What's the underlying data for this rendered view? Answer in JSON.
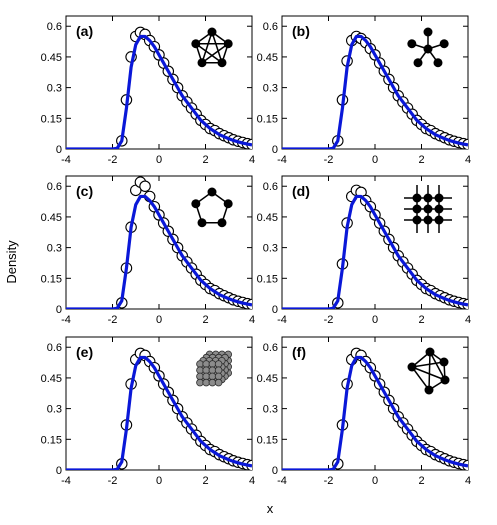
{
  "figure": {
    "ylabel": "Density",
    "xlabel": "x"
  },
  "colors": {
    "curve": "#0a18d8",
    "markers": "#000000",
    "frame": "#000000"
  },
  "chart_data": [
    {
      "type": "line",
      "panel_label": "(a)",
      "inset_icon": "complete-graph-icon",
      "xlim": [
        -4,
        4
      ],
      "ylim": [
        0,
        0.65
      ],
      "xticks": [
        "-4",
        "-2",
        "0",
        "2",
        "4"
      ],
      "yticks": [
        "0",
        "0.15",
        "0.3",
        "0.45",
        "0.6"
      ],
      "series": [
        {
          "kind": "markers",
          "x": [
            -1.6,
            -1.4,
            -1.2,
            -1.0,
            -0.8,
            -0.6,
            -0.4,
            -0.2,
            0.0,
            0.2,
            0.4,
            0.6,
            0.8,
            1.0,
            1.2,
            1.4,
            1.6,
            1.8,
            2.0,
            2.2,
            2.4,
            2.6,
            2.8,
            3.0,
            3.2,
            3.4,
            3.6,
            3.8,
            4.0
          ],
          "y": [
            0.04,
            0.24,
            0.45,
            0.55,
            0.57,
            0.56,
            0.53,
            0.5,
            0.46,
            0.42,
            0.38,
            0.34,
            0.3,
            0.26,
            0.23,
            0.2,
            0.17,
            0.14,
            0.12,
            0.1,
            0.09,
            0.075,
            0.065,
            0.055,
            0.045,
            0.038,
            0.032,
            0.026,
            0.022
          ]
        },
        {
          "kind": "line",
          "x": [
            -4,
            -2,
            -1.8,
            -1.6,
            -1.4,
            -1.2,
            -1.0,
            -0.8,
            -0.6,
            -0.4,
            -0.2,
            0.0,
            0.2,
            0.4,
            0.6,
            0.8,
            1.0,
            1.2,
            1.4,
            1.6,
            1.8,
            2.0,
            2.2,
            2.4,
            2.6,
            2.8,
            3.0,
            3.2,
            3.4,
            3.6,
            3.8,
            4.0
          ],
          "y": [
            0,
            0,
            0.003,
            0.04,
            0.2,
            0.4,
            0.51,
            0.55,
            0.55,
            0.53,
            0.5,
            0.46,
            0.42,
            0.38,
            0.34,
            0.3,
            0.26,
            0.23,
            0.2,
            0.17,
            0.14,
            0.12,
            0.1,
            0.085,
            0.07,
            0.06,
            0.05,
            0.042,
            0.035,
            0.029,
            0.024,
            0.02
          ]
        }
      ]
    },
    {
      "type": "line",
      "panel_label": "(b)",
      "inset_icon": "star-graph-icon",
      "xlim": [
        -4,
        4
      ],
      "ylim": [
        0,
        0.65
      ],
      "xticks": [
        "-4",
        "-2",
        "0",
        "2",
        "4"
      ],
      "yticks": [
        "0",
        "0.15",
        "0.3",
        "0.45",
        "0.6"
      ],
      "series": [
        {
          "kind": "markers",
          "x": [
            -1.6,
            -1.4,
            -1.2,
            -1.0,
            -0.8,
            -0.6,
            -0.4,
            -0.2,
            0.0,
            0.2,
            0.4,
            0.6,
            0.8,
            1.0,
            1.2,
            1.4,
            1.6,
            1.8,
            2.0,
            2.2,
            2.4,
            2.6,
            2.8,
            3.0,
            3.2,
            3.4,
            3.6,
            3.8,
            4.0
          ],
          "y": [
            0.04,
            0.24,
            0.43,
            0.53,
            0.55,
            0.54,
            0.52,
            0.49,
            0.46,
            0.42,
            0.38,
            0.34,
            0.3,
            0.26,
            0.23,
            0.2,
            0.17,
            0.14,
            0.12,
            0.1,
            0.09,
            0.075,
            0.065,
            0.055,
            0.045,
            0.038,
            0.032,
            0.026,
            0.022
          ]
        },
        {
          "kind": "line",
          "x": [
            -4,
            -2,
            -1.8,
            -1.6,
            -1.4,
            -1.2,
            -1.0,
            -0.8,
            -0.6,
            -0.4,
            -0.2,
            0.0,
            0.2,
            0.4,
            0.6,
            0.8,
            1.0,
            1.2,
            1.4,
            1.6,
            1.8,
            2.0,
            2.2,
            2.4,
            2.6,
            2.8,
            3.0,
            3.2,
            3.4,
            3.6,
            3.8,
            4.0
          ],
          "y": [
            0,
            0,
            0.003,
            0.04,
            0.2,
            0.4,
            0.51,
            0.55,
            0.55,
            0.53,
            0.5,
            0.46,
            0.42,
            0.38,
            0.34,
            0.3,
            0.26,
            0.23,
            0.2,
            0.17,
            0.14,
            0.12,
            0.1,
            0.085,
            0.07,
            0.06,
            0.05,
            0.042,
            0.035,
            0.029,
            0.024,
            0.02
          ]
        }
      ]
    },
    {
      "type": "line",
      "panel_label": "(c)",
      "inset_icon": "pentagon-ring-icon",
      "xlim": [
        -4,
        4
      ],
      "ylim": [
        0,
        0.65
      ],
      "xticks": [
        "-4",
        "-2",
        "0",
        "2",
        "4"
      ],
      "yticks": [
        "0",
        "0.15",
        "0.3",
        "0.45",
        "0.6"
      ],
      "series": [
        {
          "kind": "markers",
          "x": [
            -1.6,
            -1.4,
            -1.2,
            -1.0,
            -0.8,
            -0.6,
            -0.4,
            -0.2,
            0.0,
            0.2,
            0.4,
            0.6,
            0.8,
            1.0,
            1.2,
            1.4,
            1.6,
            1.8,
            2.0,
            2.2,
            2.4,
            2.6,
            2.8,
            3.0,
            3.2,
            3.4,
            3.6,
            3.8,
            4.0
          ],
          "y": [
            0.03,
            0.2,
            0.4,
            0.58,
            0.62,
            0.6,
            0.55,
            0.5,
            0.46,
            0.42,
            0.38,
            0.34,
            0.3,
            0.26,
            0.23,
            0.2,
            0.17,
            0.14,
            0.12,
            0.1,
            0.09,
            0.075,
            0.065,
            0.055,
            0.045,
            0.038,
            0.032,
            0.026,
            0.022
          ]
        },
        {
          "kind": "line",
          "x": [
            -4,
            -2,
            -1.8,
            -1.6,
            -1.4,
            -1.2,
            -1.0,
            -0.8,
            -0.6,
            -0.4,
            -0.2,
            0.0,
            0.2,
            0.4,
            0.6,
            0.8,
            1.0,
            1.2,
            1.4,
            1.6,
            1.8,
            2.0,
            2.2,
            2.4,
            2.6,
            2.8,
            3.0,
            3.2,
            3.4,
            3.6,
            3.8,
            4.0
          ],
          "y": [
            0,
            0,
            0.003,
            0.04,
            0.2,
            0.4,
            0.51,
            0.55,
            0.55,
            0.53,
            0.5,
            0.46,
            0.42,
            0.38,
            0.34,
            0.3,
            0.26,
            0.23,
            0.2,
            0.17,
            0.14,
            0.12,
            0.1,
            0.085,
            0.07,
            0.06,
            0.05,
            0.042,
            0.035,
            0.029,
            0.024,
            0.02
          ]
        }
      ]
    },
    {
      "type": "line",
      "panel_label": "(d)",
      "inset_icon": "square-lattice-icon",
      "xlim": [
        -4,
        4
      ],
      "ylim": [
        0,
        0.65
      ],
      "xticks": [
        "-4",
        "-2",
        "0",
        "2",
        "4"
      ],
      "yticks": [
        "0",
        "0.15",
        "0.3",
        "0.45",
        "0.6"
      ],
      "series": [
        {
          "kind": "markers",
          "x": [
            -1.6,
            -1.4,
            -1.2,
            -1.0,
            -0.8,
            -0.6,
            -0.4,
            -0.2,
            0.0,
            0.2,
            0.4,
            0.6,
            0.8,
            1.0,
            1.2,
            1.4,
            1.6,
            1.8,
            2.0,
            2.2,
            2.4,
            2.6,
            2.8,
            3.0,
            3.2,
            3.4,
            3.6,
            3.8,
            4.0
          ],
          "y": [
            0.03,
            0.22,
            0.42,
            0.55,
            0.58,
            0.57,
            0.53,
            0.5,
            0.46,
            0.42,
            0.38,
            0.34,
            0.3,
            0.26,
            0.23,
            0.2,
            0.17,
            0.14,
            0.12,
            0.1,
            0.09,
            0.075,
            0.065,
            0.055,
            0.045,
            0.038,
            0.032,
            0.026,
            0.022
          ]
        },
        {
          "kind": "line",
          "x": [
            -4,
            -2,
            -1.8,
            -1.6,
            -1.4,
            -1.2,
            -1.0,
            -0.8,
            -0.6,
            -0.4,
            -0.2,
            0.0,
            0.2,
            0.4,
            0.6,
            0.8,
            1.0,
            1.2,
            1.4,
            1.6,
            1.8,
            2.0,
            2.2,
            2.4,
            2.6,
            2.8,
            3.0,
            3.2,
            3.4,
            3.6,
            3.8,
            4.0
          ],
          "y": [
            0,
            0,
            0.003,
            0.04,
            0.2,
            0.4,
            0.51,
            0.55,
            0.55,
            0.53,
            0.5,
            0.46,
            0.42,
            0.38,
            0.34,
            0.3,
            0.26,
            0.23,
            0.2,
            0.17,
            0.14,
            0.12,
            0.1,
            0.085,
            0.07,
            0.06,
            0.05,
            0.042,
            0.035,
            0.029,
            0.024,
            0.02
          ]
        }
      ]
    },
    {
      "type": "line",
      "panel_label": "(e)",
      "inset_icon": "cubic-lattice-icon",
      "xlim": [
        -4,
        4
      ],
      "ylim": [
        0,
        0.65
      ],
      "xticks": [
        "-4",
        "-2",
        "0",
        "2",
        "4"
      ],
      "yticks": [
        "0",
        "0.15",
        "0.3",
        "0.45",
        "0.6"
      ],
      "series": [
        {
          "kind": "markers",
          "x": [
            -1.6,
            -1.4,
            -1.2,
            -1.0,
            -0.8,
            -0.6,
            -0.4,
            -0.2,
            0.0,
            0.2,
            0.4,
            0.6,
            0.8,
            1.0,
            1.2,
            1.4,
            1.6,
            1.8,
            2.0,
            2.2,
            2.4,
            2.6,
            2.8,
            3.0,
            3.2,
            3.4,
            3.6,
            3.8,
            4.0
          ],
          "y": [
            0.03,
            0.22,
            0.42,
            0.54,
            0.57,
            0.56,
            0.53,
            0.5,
            0.46,
            0.42,
            0.38,
            0.34,
            0.3,
            0.26,
            0.23,
            0.2,
            0.17,
            0.14,
            0.12,
            0.1,
            0.09,
            0.075,
            0.065,
            0.055,
            0.045,
            0.038,
            0.032,
            0.026,
            0.022
          ]
        },
        {
          "kind": "line",
          "x": [
            -4,
            -2,
            -1.8,
            -1.6,
            -1.4,
            -1.2,
            -1.0,
            -0.8,
            -0.6,
            -0.4,
            -0.2,
            0.0,
            0.2,
            0.4,
            0.6,
            0.8,
            1.0,
            1.2,
            1.4,
            1.6,
            1.8,
            2.0,
            2.2,
            2.4,
            2.6,
            2.8,
            3.0,
            3.2,
            3.4,
            3.6,
            3.8,
            4.0
          ],
          "y": [
            0,
            0,
            0.003,
            0.04,
            0.2,
            0.4,
            0.51,
            0.55,
            0.55,
            0.53,
            0.5,
            0.46,
            0.42,
            0.38,
            0.34,
            0.3,
            0.26,
            0.23,
            0.2,
            0.17,
            0.14,
            0.12,
            0.1,
            0.085,
            0.07,
            0.06,
            0.05,
            0.042,
            0.035,
            0.029,
            0.024,
            0.02
          ]
        }
      ]
    },
    {
      "type": "line",
      "panel_label": "(f)",
      "inset_icon": "random-graph-icon",
      "xlim": [
        -4,
        4
      ],
      "ylim": [
        0,
        0.65
      ],
      "xticks": [
        "-4",
        "-2",
        "0",
        "2",
        "4"
      ],
      "yticks": [
        "0",
        "0.15",
        "0.3",
        "0.45",
        "0.6"
      ],
      "series": [
        {
          "kind": "markers",
          "x": [
            -1.6,
            -1.4,
            -1.2,
            -1.0,
            -0.8,
            -0.6,
            -0.4,
            -0.2,
            0.0,
            0.2,
            0.4,
            0.6,
            0.8,
            1.0,
            1.2,
            1.4,
            1.6,
            1.8,
            2.0,
            2.2,
            2.4,
            2.6,
            2.8,
            3.0,
            3.2,
            3.4,
            3.6,
            3.8,
            4.0
          ],
          "y": [
            0.03,
            0.22,
            0.42,
            0.54,
            0.57,
            0.56,
            0.53,
            0.5,
            0.46,
            0.42,
            0.38,
            0.34,
            0.3,
            0.26,
            0.23,
            0.2,
            0.17,
            0.14,
            0.12,
            0.1,
            0.09,
            0.075,
            0.065,
            0.055,
            0.045,
            0.038,
            0.032,
            0.026,
            0.022
          ]
        },
        {
          "kind": "line",
          "x": [
            -4,
            -2,
            -1.8,
            -1.6,
            -1.4,
            -1.2,
            -1.0,
            -0.8,
            -0.6,
            -0.4,
            -0.2,
            0.0,
            0.2,
            0.4,
            0.6,
            0.8,
            1.0,
            1.2,
            1.4,
            1.6,
            1.8,
            2.0,
            2.2,
            2.4,
            2.6,
            2.8,
            3.0,
            3.2,
            3.4,
            3.6,
            3.8,
            4.0
          ],
          "y": [
            0,
            0,
            0.003,
            0.04,
            0.2,
            0.4,
            0.51,
            0.55,
            0.55,
            0.53,
            0.5,
            0.46,
            0.42,
            0.38,
            0.34,
            0.3,
            0.26,
            0.23,
            0.2,
            0.17,
            0.14,
            0.12,
            0.1,
            0.085,
            0.07,
            0.06,
            0.05,
            0.042,
            0.035,
            0.029,
            0.024,
            0.02
          ]
        }
      ]
    }
  ]
}
